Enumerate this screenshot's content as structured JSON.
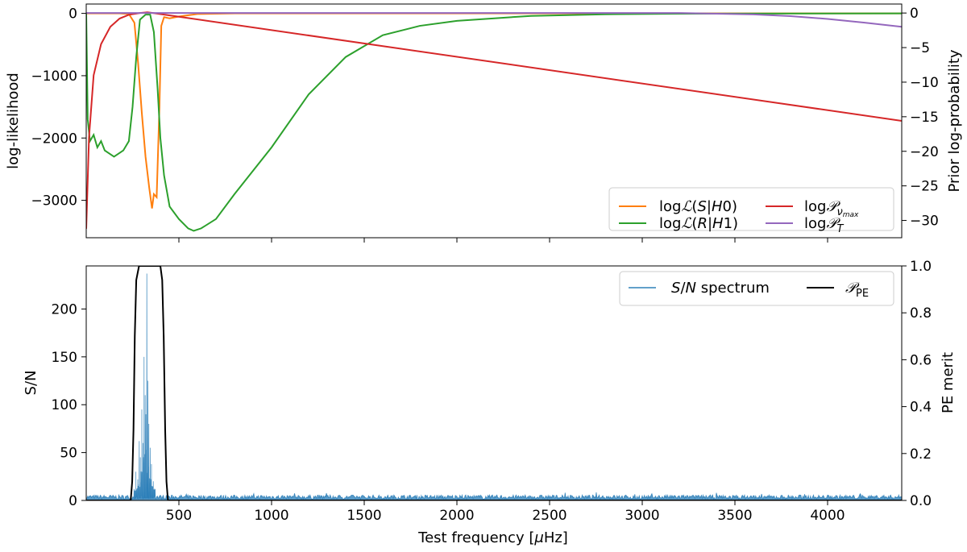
{
  "chart_data": [
    {
      "type": "line",
      "title": "",
      "xlim": [
        0,
        4400
      ],
      "ylabel_left": "log-likelihood",
      "ylabel_right": "Prior log-probability",
      "ylim_left": [
        -3600,
        150
      ],
      "ylim_right": [
        -32.5,
        1.3
      ],
      "yticks_left": [
        "0",
        "−1000",
        "−2000",
        "−3000"
      ],
      "yticks_right": [
        "0",
        "−5",
        "−10",
        "−15",
        "−20",
        "−25",
        "−30"
      ],
      "legend_position": "lower-right",
      "series": [
        {
          "name": "logℒ(S|H0)",
          "axis": "left",
          "color": "#ff7f0e",
          "points": [
            [
              0,
              0
            ],
            [
              180,
              0
            ],
            [
              230,
              -10
            ],
            [
              260,
              -150
            ],
            [
              280,
              -800
            ],
            [
              300,
              -1600
            ],
            [
              320,
              -2300
            ],
            [
              340,
              -2800
            ],
            [
              355,
              -3130
            ],
            [
              365,
              -2900
            ],
            [
              380,
              -2950
            ],
            [
              395,
              -1500
            ],
            [
              405,
              -200
            ],
            [
              420,
              -60
            ],
            [
              450,
              -80
            ],
            [
              500,
              -50
            ],
            [
              600,
              -10
            ],
            [
              800,
              0
            ],
            [
              4400,
              0
            ]
          ]
        },
        {
          "name": "logℒ(R|H1)",
          "axis": "left",
          "color": "#2ca02c",
          "points": [
            [
              0,
              0
            ],
            [
              8,
              -1700
            ],
            [
              20,
              -2050
            ],
            [
              40,
              -1950
            ],
            [
              60,
              -2150
            ],
            [
              80,
              -2050
            ],
            [
              100,
              -2200
            ],
            [
              150,
              -2300
            ],
            [
              200,
              -2200
            ],
            [
              230,
              -2050
            ],
            [
              250,
              -1500
            ],
            [
              270,
              -700
            ],
            [
              290,
              -100
            ],
            [
              320,
              -20
            ],
            [
              345,
              -20
            ],
            [
              365,
              -300
            ],
            [
              385,
              -1200
            ],
            [
              400,
              -2000
            ],
            [
              420,
              -2600
            ],
            [
              450,
              -3100
            ],
            [
              500,
              -3300
            ],
            [
              550,
              -3450
            ],
            [
              580,
              -3490
            ],
            [
              620,
              -3450
            ],
            [
              700,
              -3300
            ],
            [
              800,
              -2900
            ],
            [
              1000,
              -2150
            ],
            [
              1200,
              -1300
            ],
            [
              1400,
              -700
            ],
            [
              1600,
              -350
            ],
            [
              1800,
              -200
            ],
            [
              2000,
              -120
            ],
            [
              2400,
              -40
            ],
            [
              2800,
              -15
            ],
            [
              3200,
              -5
            ],
            [
              4400,
              0
            ]
          ]
        },
        {
          "name": "log𝒫ν_max",
          "axis": "right",
          "color": "#d62728",
          "points": [
            [
              0,
              -31.2
            ],
            [
              15,
              -18
            ],
            [
              40,
              -9
            ],
            [
              80,
              -4.5
            ],
            [
              130,
              -2
            ],
            [
              180,
              -0.8
            ],
            [
              230,
              -0.25
            ],
            [
              290,
              0
            ],
            [
              330,
              0.1
            ],
            [
              360,
              0
            ],
            [
              4400,
              -15.6
            ]
          ]
        },
        {
          "name": "log𝒫_T",
          "axis": "right",
          "color": "#9467bd",
          "points": [
            [
              0,
              0
            ],
            [
              3200,
              0
            ],
            [
              3600,
              -0.2
            ],
            [
              3800,
              -0.45
            ],
            [
              4000,
              -0.85
            ],
            [
              4200,
              -1.4
            ],
            [
              4400,
              -2.0
            ]
          ]
        }
      ]
    },
    {
      "type": "line",
      "title": "",
      "xlabel": "Test frequency [μHz]",
      "xlim": [
        0,
        4400
      ],
      "xticks": [
        500,
        1000,
        1500,
        2000,
        2500,
        3000,
        3500,
        4000
      ],
      "ylabel_left": "S/N",
      "ylabel_right": "PE merit",
      "ylim_left": [
        0,
        245
      ],
      "ylim_right": [
        0,
        1.0
      ],
      "yticks_left": [
        0,
        50,
        100,
        150,
        200
      ],
      "yticks_right": [
        0.0,
        0.2,
        0.4,
        0.6,
        0.8,
        1.0
      ],
      "legend_position": "upper-right",
      "series": [
        {
          "name": "S/N spectrum",
          "axis": "left",
          "color": "#1f77b4",
          "noise_level": 5,
          "peaks": [
            [
              258,
              12
            ],
            [
              268,
              30
            ],
            [
              278,
              22
            ],
            [
              286,
              62
            ],
            [
              292,
              45
            ],
            [
              300,
              95
            ],
            [
              306,
              60
            ],
            [
              312,
              150
            ],
            [
              318,
              110
            ],
            [
              322,
              90
            ],
            [
              327,
              237
            ],
            [
              333,
              125
            ],
            [
              338,
              80
            ],
            [
              345,
              55
            ],
            [
              352,
              38
            ],
            [
              362,
              20
            ],
            [
              372,
              12
            ]
          ]
        },
        {
          "name": "𝒫_PE",
          "axis": "right",
          "color": "#000000",
          "points": [
            [
              0,
              0
            ],
            [
              240,
              0
            ],
            [
              248,
              0.08
            ],
            [
              255,
              0.3
            ],
            [
              262,
              0.7
            ],
            [
              270,
              0.94
            ],
            [
              285,
              1.0
            ],
            [
              400,
              1.0
            ],
            [
              410,
              0.94
            ],
            [
              418,
              0.7
            ],
            [
              426,
              0.3
            ],
            [
              433,
              0.08
            ],
            [
              441,
              0
            ],
            [
              4400,
              0
            ]
          ]
        }
      ]
    }
  ],
  "legend_top": {
    "items": [
      {
        "label": "logℒ(S|H0)",
        "color": "#ff7f0e"
      },
      {
        "label": "log𝒫ν_max",
        "color": "#d62728"
      },
      {
        "label": "logℒ(R|H1)",
        "color": "#2ca02c"
      },
      {
        "label": "log𝒫_T",
        "color": "#9467bd"
      }
    ]
  },
  "legend_bottom": {
    "items": [
      {
        "label": "S/N spectrum",
        "color": "#1f77b4"
      },
      {
        "label": "𝒫_PE",
        "color": "#000000"
      }
    ]
  }
}
